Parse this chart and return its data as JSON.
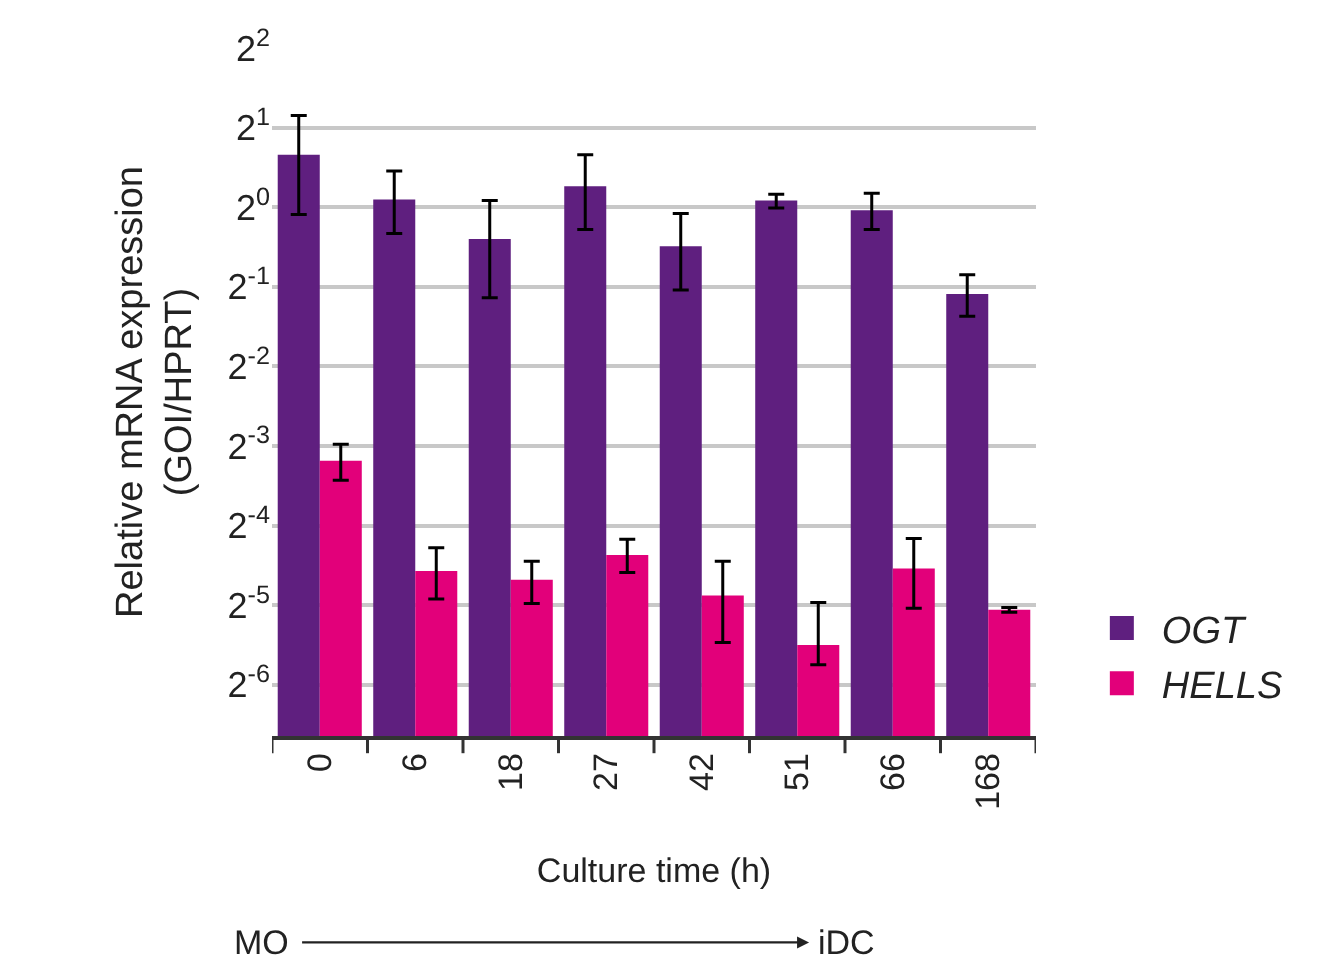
{
  "chart_data": {
    "type": "bar",
    "xlabel": "Culture time (h)",
    "ylabel": "Relative mRNA expression\n(GOI/HPRT)",
    "categories": [
      "0",
      "6",
      "18",
      "27",
      "42",
      "51",
      "66",
      "168"
    ],
    "series": [
      {
        "name": "OGT",
        "color": "#5f1f7f",
        "values": [
          1.58,
          1.07,
          0.758,
          1.2,
          0.712,
          1.06,
          0.973,
          0.47
        ],
        "errors": [
          [
            0.939,
            2.22
          ],
          [
            0.796,
            1.37
          ],
          [
            0.454,
            1.06
          ],
          [
            0.824,
            1.58
          ],
          [
            0.486,
            0.946
          ],
          [
            0.993,
            1.12
          ],
          [
            0.824,
            1.13
          ],
          [
            0.387,
            0.555
          ]
        ]
      },
      {
        "name": "HELLS",
        "color": "#e2007a",
        "values": [
          0.11,
          0.0421,
          0.039,
          0.0484,
          0.034,
          0.0221,
          0.043,
          0.03
        ],
        "errors": [
          [
            0.0928,
            0.127
          ],
          [
            0.033,
            0.0515
          ],
          [
            0.0317,
            0.0458
          ],
          [
            0.0415,
            0.0555
          ],
          [
            0.0226,
            0.0458
          ],
          [
            0.0186,
            0.032
          ],
          [
            0.0304,
            0.0559
          ],
          [
            0.0294,
            0.0306
          ]
        ]
      }
    ],
    "log": "y",
    "ylim": [
      0.01,
      4
    ],
    "yticks": [
      {
        "value": 4,
        "label": "2$^{2}$"
      },
      {
        "value": 2,
        "label": "2$^{1}$"
      },
      {
        "value": 1,
        "label": "2$^{0}$"
      },
      {
        "value": 0.5,
        "label": "2$^{-1}$"
      },
      {
        "value": 0.25,
        "label": "2$^{-2}$"
      },
      {
        "value": 0.125,
        "label": "2$^{-3}$"
      },
      {
        "value": 0.0625,
        "label": "2$^{-4}$"
      },
      {
        "value": 0.03125,
        "label": "2$^{-5}$"
      },
      {
        "value": 0.015625,
        "label": "2$^{-6}$"
      }
    ],
    "grid": "y",
    "legend": "right",
    "annotations": [
      "MO",
      "iDC"
    ]
  }
}
